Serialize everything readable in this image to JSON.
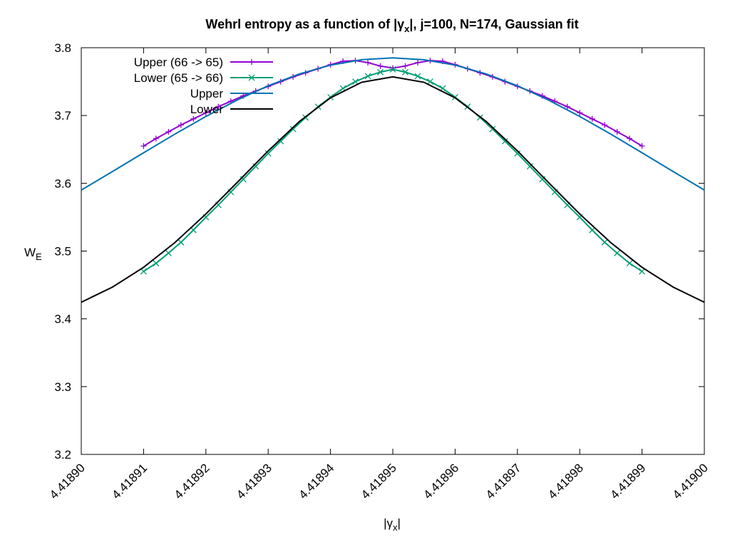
{
  "chart_data": {
    "type": "line",
    "title": [
      "Wehrl entropy as a function of |γ",
      "x",
      "|,  j=100, N=174, Gaussian fit"
    ],
    "xlabel": [
      "|γ",
      "x",
      "|"
    ],
    "ylabel": [
      "W",
      "E"
    ],
    "xlim": [
      4.4189,
      4.419
    ],
    "ylim": [
      3.2,
      3.8
    ],
    "xticks": [
      {
        "value": 4.4189,
        "label": "4.41890"
      },
      {
        "value": 4.41891,
        "label": "4.41891"
      },
      {
        "value": 4.41892,
        "label": "4.41892"
      },
      {
        "value": 4.41893,
        "label": "4.41893"
      },
      {
        "value": 4.41894,
        "label": "4.41894"
      },
      {
        "value": 4.41895,
        "label": "4.41895"
      },
      {
        "value": 4.41896,
        "label": "4.41896"
      },
      {
        "value": 4.41897,
        "label": "4.41897"
      },
      {
        "value": 4.41898,
        "label": "4.41898"
      },
      {
        "value": 4.41899,
        "label": "4.41899"
      },
      {
        "value": 4.419,
        "label": "4.41900"
      }
    ],
    "yticks": [
      3.2,
      3.3,
      3.4,
      3.5,
      3.6,
      3.7,
      3.8
    ],
    "grid": false,
    "legend": "top-left",
    "series": [
      {
        "name": "Upper (66 -> 65)",
        "color": "#9400d3",
        "marker": "plus",
        "x": [
          4.41891,
          4.418912,
          4.418914,
          4.418916,
          4.418918,
          4.41892,
          4.418922,
          4.418924,
          4.418926,
          4.418928,
          4.41893,
          4.418932,
          4.418934,
          4.418936,
          4.418938,
          4.41894,
          4.418942,
          4.418944,
          4.418946,
          4.418948,
          4.41895,
          4.418952,
          4.418954,
          4.418956,
          4.418958,
          4.41896,
          4.418962,
          4.418964,
          4.418966,
          4.418968,
          4.41897,
          4.418972,
          4.418974,
          4.418976,
          4.418978,
          4.41898,
          4.418982,
          4.418984,
          4.418986,
          4.418988,
          4.41899
        ],
        "values": [
          3.655,
          3.666,
          3.676,
          3.686,
          3.695,
          3.704,
          3.713,
          3.721,
          3.729,
          3.736,
          3.743,
          3.75,
          3.757,
          3.763,
          3.769,
          3.775,
          3.78,
          3.781,
          3.778,
          3.773,
          3.77,
          3.773,
          3.778,
          3.781,
          3.78,
          3.775,
          3.769,
          3.763,
          3.757,
          3.75,
          3.743,
          3.736,
          3.729,
          3.721,
          3.713,
          3.704,
          3.695,
          3.686,
          3.676,
          3.666,
          3.655
        ]
      },
      {
        "name": "Lower (65 -> 66)",
        "color": "#009e73",
        "marker": "cross",
        "x": [
          4.41891,
          4.418912,
          4.418914,
          4.418916,
          4.418918,
          4.41892,
          4.418922,
          4.418924,
          4.418926,
          4.418928,
          4.41893,
          4.418932,
          4.418934,
          4.418936,
          4.418938,
          4.41894,
          4.418942,
          4.418944,
          4.418946,
          4.418948,
          4.41895,
          4.418952,
          4.418954,
          4.418956,
          4.418958,
          4.41896,
          4.418962,
          4.418964,
          4.418966,
          4.418968,
          4.41897,
          4.418972,
          4.418974,
          4.418976,
          4.418978,
          4.41898,
          4.418982,
          4.418984,
          4.418986,
          4.418988,
          4.41899
        ],
        "values": [
          3.47,
          3.482,
          3.497,
          3.513,
          3.531,
          3.55,
          3.568,
          3.587,
          3.606,
          3.625,
          3.644,
          3.662,
          3.68,
          3.697,
          3.713,
          3.727,
          3.74,
          3.75,
          3.758,
          3.764,
          3.768,
          3.764,
          3.758,
          3.75,
          3.74,
          3.727,
          3.713,
          3.697,
          3.68,
          3.662,
          3.644,
          3.625,
          3.606,
          3.587,
          3.568,
          3.55,
          3.531,
          3.513,
          3.497,
          3.482,
          3.47
        ]
      },
      {
        "name": "Upper",
        "color": "#0072b2",
        "marker": "none",
        "x": [
          4.4189,
          4.418905,
          4.41891,
          4.418915,
          4.41892,
          4.418925,
          4.41893,
          4.418935,
          4.41894,
          4.418945,
          4.41895,
          4.418955,
          4.41896,
          4.418965,
          4.41897,
          4.418975,
          4.41898,
          4.418985,
          4.41899,
          4.418995,
          4.419
        ],
        "values": [
          3.59,
          3.6173,
          3.645,
          3.6724,
          3.6986,
          3.7227,
          3.7439,
          3.7613,
          3.7743,
          3.7823,
          3.785,
          3.7823,
          3.7743,
          3.7613,
          3.7439,
          3.7227,
          3.6986,
          3.6724,
          3.645,
          3.6173,
          3.59
        ]
      },
      {
        "name": "Lower",
        "color": "#000000",
        "marker": "none",
        "x": [
          4.4189,
          4.418905,
          4.41891,
          4.418915,
          4.41892,
          4.418925,
          4.41893,
          4.418935,
          4.41894,
          4.418945,
          4.41895,
          4.418955,
          4.41896,
          4.418965,
          4.41897,
          4.418975,
          4.41898,
          4.418985,
          4.41899,
          4.418995,
          4.419
        ],
        "values": [
          3.4245,
          3.4468,
          3.476,
          3.5123,
          3.5547,
          3.601,
          3.6478,
          3.6911,
          3.7261,
          3.749,
          3.757,
          3.749,
          3.7261,
          3.6911,
          3.6478,
          3.601,
          3.5547,
          3.5123,
          3.476,
          3.4468,
          3.4245
        ]
      }
    ]
  }
}
